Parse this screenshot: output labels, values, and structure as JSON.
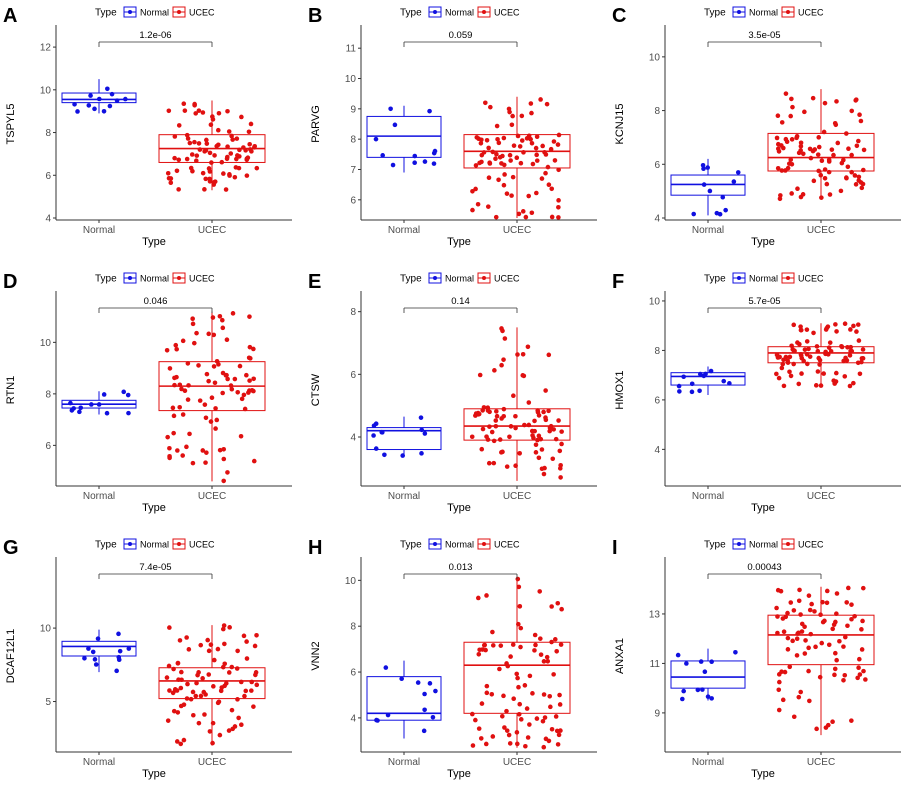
{
  "legend": {
    "title": "Type",
    "groups": [
      "Normal",
      "UCEC"
    ]
  },
  "colors": {
    "Normal": "#1010e0",
    "UCEC": "#e01010",
    "axis": "#333333",
    "tick_text": "#4d4d4d"
  },
  "chart_data": [
    {
      "panel": "A",
      "type": "box",
      "title": "",
      "xlabel": "Type",
      "ylabel": "TSPYL5",
      "categories": [
        "Normal",
        "UCEC"
      ],
      "ylim": [
        4,
        12.8
      ],
      "yticks": [
        4,
        6,
        8,
        10,
        12
      ],
      "pvalue": "1.2e-06",
      "boxes": {
        "Normal": {
          "q1": 9.4,
          "median": 9.55,
          "q3": 9.85,
          "whisker_low": 8.9,
          "whisker_high": 10.5
        },
        "UCEC": {
          "q1": 6.6,
          "median": 7.25,
          "q3": 7.9,
          "whisker_low": 5.3,
          "whisker_high": 9.5
        }
      }
    },
    {
      "panel": "B",
      "type": "box",
      "title": "",
      "xlabel": "Type",
      "ylabel": "PARVG",
      "categories": [
        "Normal",
        "UCEC"
      ],
      "ylim": [
        5.4,
        11.6
      ],
      "yticks": [
        6,
        7,
        8,
        9,
        10,
        11
      ],
      "pvalue": "0.059",
      "boxes": {
        "Normal": {
          "q1": 7.4,
          "median": 8.1,
          "q3": 8.75,
          "whisker_low": 6.9,
          "whisker_high": 9.1
        },
        "UCEC": {
          "q1": 7.05,
          "median": 7.6,
          "q3": 8.15,
          "whisker_low": 5.4,
          "whisker_high": 9.4
        }
      }
    },
    {
      "panel": "C",
      "type": "box",
      "title": "",
      "xlabel": "Type",
      "ylabel": "KCNJ15",
      "categories": [
        "Normal",
        "UCEC"
      ],
      "ylim": [
        4,
        11
      ],
      "yticks": [
        4,
        6,
        8,
        10
      ],
      "pvalue": "3.5e-05",
      "boxes": {
        "Normal": {
          "q1": 4.85,
          "median": 5.25,
          "q3": 5.6,
          "whisker_low": 4.1,
          "whisker_high": 6.2
        },
        "UCEC": {
          "q1": 5.75,
          "median": 6.25,
          "q3": 7.15,
          "whisker_low": 4.7,
          "whisker_high": 8.8
        }
      }
    },
    {
      "panel": "D",
      "type": "box",
      "title": "",
      "xlabel": "Type",
      "ylabel": "RTN1",
      "categories": [
        "Normal",
        "UCEC"
      ],
      "ylim": [
        4.5,
        11.8
      ],
      "yticks": [
        6,
        8,
        10
      ],
      "pvalue": "0.046",
      "boxes": {
        "Normal": {
          "q1": 7.45,
          "median": 7.6,
          "q3": 7.75,
          "whisker_low": 7.2,
          "whisker_high": 8.1
        },
        "UCEC": {
          "q1": 7.35,
          "median": 8.3,
          "q3": 9.25,
          "whisker_low": 4.6,
          "whisker_high": 11.2
        }
      }
    },
    {
      "panel": "E",
      "type": "box",
      "title": "",
      "xlabel": "Type",
      "ylabel": "CTSW",
      "categories": [
        "Normal",
        "UCEC"
      ],
      "ylim": [
        2.5,
        8.5
      ],
      "yticks": [
        4,
        6,
        8
      ],
      "pvalue": "0.14",
      "boxes": {
        "Normal": {
          "q1": 3.6,
          "median": 4.2,
          "q3": 4.3,
          "whisker_low": 3.4,
          "whisker_high": 4.65
        },
        "UCEC": {
          "q1": 3.9,
          "median": 4.35,
          "q3": 4.9,
          "whisker_low": 2.6,
          "whisker_high": 7.5
        }
      }
    },
    {
      "panel": "F",
      "type": "box",
      "title": "",
      "xlabel": "Type",
      "ylabel": "HMOX1",
      "categories": [
        "Normal",
        "UCEC"
      ],
      "ylim": [
        2.6,
        10.2
      ],
      "yticks": [
        4,
        6,
        8,
        10
      ],
      "pvalue": "5.7e-05",
      "boxes": {
        "Normal": {
          "q1": 6.6,
          "median": 6.95,
          "q3": 7.1,
          "whisker_low": 6.2,
          "whisker_high": 7.35
        },
        "UCEC": {
          "q1": 7.5,
          "median": 7.9,
          "q3": 8.15,
          "whisker_low": 6.55,
          "whisker_high": 9.1
        }
      }
    },
    {
      "panel": "G",
      "type": "box",
      "title": "",
      "xlabel": "Type",
      "ylabel": "DCAF12L1",
      "categories": [
        "Normal",
        "UCEC"
      ],
      "ylim": [
        1.7,
        14.5
      ],
      "yticks": [
        5,
        10
      ],
      "pvalue": "7.4e-05",
      "boxes": {
        "Normal": {
          "q1": 8.1,
          "median": 8.75,
          "q3": 9.1,
          "whisker_low": 7.0,
          "whisker_high": 9.9
        },
        "UCEC": {
          "q1": 5.2,
          "median": 6.4,
          "q3": 7.3,
          "whisker_low": 2.0,
          "whisker_high": 10.2
        }
      }
    },
    {
      "panel": "H",
      "type": "box",
      "title": "",
      "xlabel": "Type",
      "ylabel": "VNN2",
      "categories": [
        "Normal",
        "UCEC"
      ],
      "ylim": [
        2.6,
        10.8
      ],
      "yticks": [
        4,
        6,
        8,
        10
      ],
      "pvalue": "0.013",
      "boxes": {
        "Normal": {
          "q1": 3.9,
          "median": 4.2,
          "q3": 5.8,
          "whisker_low": 3.1,
          "whisker_high": 6.5
        },
        "UCEC": {
          "q1": 4.2,
          "median": 6.3,
          "q3": 7.3,
          "whisker_low": 2.7,
          "whisker_high": 10.1
        }
      }
    },
    {
      "panel": "I",
      "type": "box",
      "title": "",
      "xlabel": "Type",
      "ylabel": "ANXA1",
      "categories": [
        "Normal",
        "UCEC"
      ],
      "ylim": [
        7.5,
        15.1
      ],
      "yticks": [
        9,
        11,
        13
      ],
      "pvalue": "0.00043",
      "boxes": {
        "Normal": {
          "q1": 10.0,
          "median": 10.45,
          "q3": 11.1,
          "whisker_low": 9.5,
          "whisker_high": 11.6
        },
        "UCEC": {
          "q1": 10.95,
          "median": 12.15,
          "q3": 12.95,
          "whisker_low": 8.1,
          "whisker_high": 14.1
        }
      }
    }
  ]
}
